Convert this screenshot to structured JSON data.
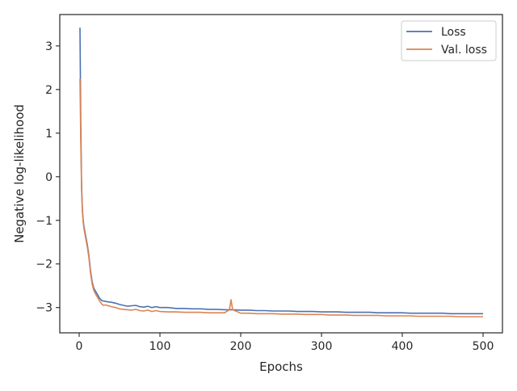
{
  "chart_data": {
    "type": "line",
    "title": "",
    "xlabel": "Epochs",
    "ylabel": "Negative log-likelihood",
    "xlim": [
      -24,
      524
    ],
    "ylim": [
      -3.58,
      3.72
    ],
    "xticks": [
      0,
      100,
      200,
      300,
      400,
      500
    ],
    "yticks": [
      3,
      2,
      1,
      0,
      -1,
      -2,
      -3
    ],
    "xtick_labels": [
      "0",
      "100",
      "200",
      "300",
      "400",
      "500"
    ],
    "ytick_labels": [
      "3",
      "2",
      "1",
      "0",
      "−1",
      "−2",
      "−3"
    ],
    "grid": false,
    "legend_position": "top-right",
    "series": [
      {
        "name": "Loss",
        "color": "#4c72b0",
        "x": [
          1,
          2,
          3,
          4,
          5,
          6,
          8,
          10,
          12,
          14,
          16,
          18,
          20,
          22,
          25,
          28,
          30,
          33,
          36,
          40,
          45,
          50,
          55,
          60,
          65,
          70,
          75,
          80,
          85,
          90,
          95,
          100,
          110,
          120,
          130,
          140,
          150,
          160,
          170,
          180,
          190,
          200,
          210,
          220,
          230,
          240,
          250,
          260,
          270,
          280,
          290,
          300,
          310,
          320,
          330,
          340,
          350,
          360,
          370,
          380,
          390,
          400,
          410,
          420,
          430,
          440,
          450,
          460,
          470,
          480,
          490,
          500
        ],
        "y": [
          3.42,
          1.2,
          -0.2,
          -0.75,
          -1.0,
          -1.15,
          -1.35,
          -1.55,
          -1.8,
          -2.15,
          -2.4,
          -2.55,
          -2.62,
          -2.68,
          -2.78,
          -2.84,
          -2.85,
          -2.86,
          -2.87,
          -2.88,
          -2.9,
          -2.93,
          -2.95,
          -2.97,
          -2.96,
          -2.95,
          -2.98,
          -2.99,
          -2.97,
          -3.0,
          -2.98,
          -3.0,
          -3.0,
          -3.02,
          -3.02,
          -3.03,
          -3.03,
          -3.04,
          -3.04,
          -3.05,
          -3.05,
          -3.06,
          -3.06,
          -3.07,
          -3.07,
          -3.08,
          -3.08,
          -3.08,
          -3.09,
          -3.09,
          -3.09,
          -3.1,
          -3.1,
          -3.1,
          -3.11,
          -3.11,
          -3.11,
          -3.11,
          -3.12,
          -3.12,
          -3.12,
          -3.12,
          -3.13,
          -3.13,
          -3.13,
          -3.13,
          -3.13,
          -3.14,
          -3.14,
          -3.14,
          -3.14,
          -3.14
        ]
      },
      {
        "name": "Val. loss",
        "color": "#dd8452",
        "x": [
          1,
          2,
          3,
          4,
          5,
          6,
          8,
          10,
          12,
          14,
          16,
          18,
          20,
          22,
          25,
          28,
          30,
          33,
          36,
          40,
          45,
          50,
          55,
          60,
          65,
          70,
          75,
          80,
          85,
          90,
          95,
          100,
          110,
          120,
          130,
          140,
          150,
          160,
          170,
          180,
          186,
          188,
          190,
          200,
          210,
          220,
          230,
          240,
          250,
          260,
          270,
          280,
          290,
          300,
          310,
          320,
          330,
          340,
          350,
          360,
          370,
          380,
          390,
          400,
          410,
          420,
          430,
          440,
          450,
          460,
          470,
          480,
          490,
          500
        ],
        "y": [
          2.25,
          0.8,
          -0.3,
          -0.8,
          -1.05,
          -1.2,
          -1.4,
          -1.6,
          -1.85,
          -2.2,
          -2.45,
          -2.6,
          -2.68,
          -2.74,
          -2.84,
          -2.92,
          -2.95,
          -2.94,
          -2.96,
          -2.98,
          -3.0,
          -3.03,
          -3.04,
          -3.05,
          -3.06,
          -3.04,
          -3.07,
          -3.08,
          -3.06,
          -3.09,
          -3.07,
          -3.09,
          -3.1,
          -3.1,
          -3.11,
          -3.11,
          -3.11,
          -3.12,
          -3.12,
          -3.12,
          -3.05,
          -2.82,
          -3.05,
          -3.13,
          -3.13,
          -3.14,
          -3.14,
          -3.14,
          -3.15,
          -3.15,
          -3.15,
          -3.16,
          -3.16,
          -3.16,
          -3.17,
          -3.17,
          -3.17,
          -3.18,
          -3.18,
          -3.18,
          -3.18,
          -3.19,
          -3.19,
          -3.19,
          -3.19,
          -3.2,
          -3.2,
          -3.2,
          -3.2,
          -3.2,
          -3.21,
          -3.21,
          -3.21,
          -3.21
        ]
      }
    ]
  }
}
